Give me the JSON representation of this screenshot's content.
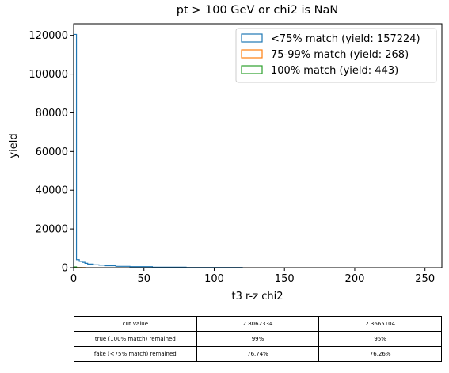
{
  "chart_data": {
    "type": "histogram",
    "title": "pt > 100 GeV or chi2 is NaN",
    "xlabel": "t3 r-z chi2",
    "ylabel": "yield",
    "xlim": [
      0,
      262
    ],
    "ylim": [
      0,
      126000
    ],
    "xticks": [
      0,
      50,
      100,
      150,
      200,
      250
    ],
    "yticks": [
      0,
      20000,
      40000,
      60000,
      80000,
      100000,
      120000
    ],
    "legend_position": "top-right",
    "series": [
      {
        "name": "<75% match (yield: 157224)",
        "color": "#1f77b4",
        "bins": [
          {
            "x0": 0,
            "x1": 2,
            "y": 120500
          },
          {
            "x0": 2,
            "x1": 4,
            "y": 4200
          },
          {
            "x0": 4,
            "x1": 6,
            "y": 3300
          },
          {
            "x0": 6,
            "x1": 8,
            "y": 2800
          },
          {
            "x0": 8,
            "x1": 10,
            "y": 2300
          },
          {
            "x0": 10,
            "x1": 14,
            "y": 1900
          },
          {
            "x0": 14,
            "x1": 18,
            "y": 1500
          },
          {
            "x0": 18,
            "x1": 22,
            "y": 1300
          },
          {
            "x0": 22,
            "x1": 30,
            "y": 1000
          },
          {
            "x0": 30,
            "x1": 40,
            "y": 700
          },
          {
            "x0": 40,
            "x1": 56,
            "y": 500
          },
          {
            "x0": 56,
            "x1": 80,
            "y": 250
          },
          {
            "x0": 80,
            "x1": 120,
            "y": 100
          }
        ]
      },
      {
        "name": "75-99% match (yield: 268)",
        "color": "#ff7f0e",
        "bins": [
          {
            "x0": 0,
            "x1": 2,
            "y": 200
          },
          {
            "x0": 2,
            "x1": 8,
            "y": 40
          }
        ]
      },
      {
        "name": "100% match (yield: 443)",
        "color": "#2ca02c",
        "bins": [
          {
            "x0": 0,
            "x1": 2,
            "y": 400
          },
          {
            "x0": 2,
            "x1": 6,
            "y": 30
          }
        ]
      }
    ]
  },
  "table": {
    "rows": [
      [
        "cut value",
        "2.8062334",
        "2.3665104"
      ],
      [
        "true (100% match) remained",
        "99%",
        "95%"
      ],
      [
        "fake (<75% match) remained",
        "76.74%",
        "76.26%"
      ]
    ]
  }
}
